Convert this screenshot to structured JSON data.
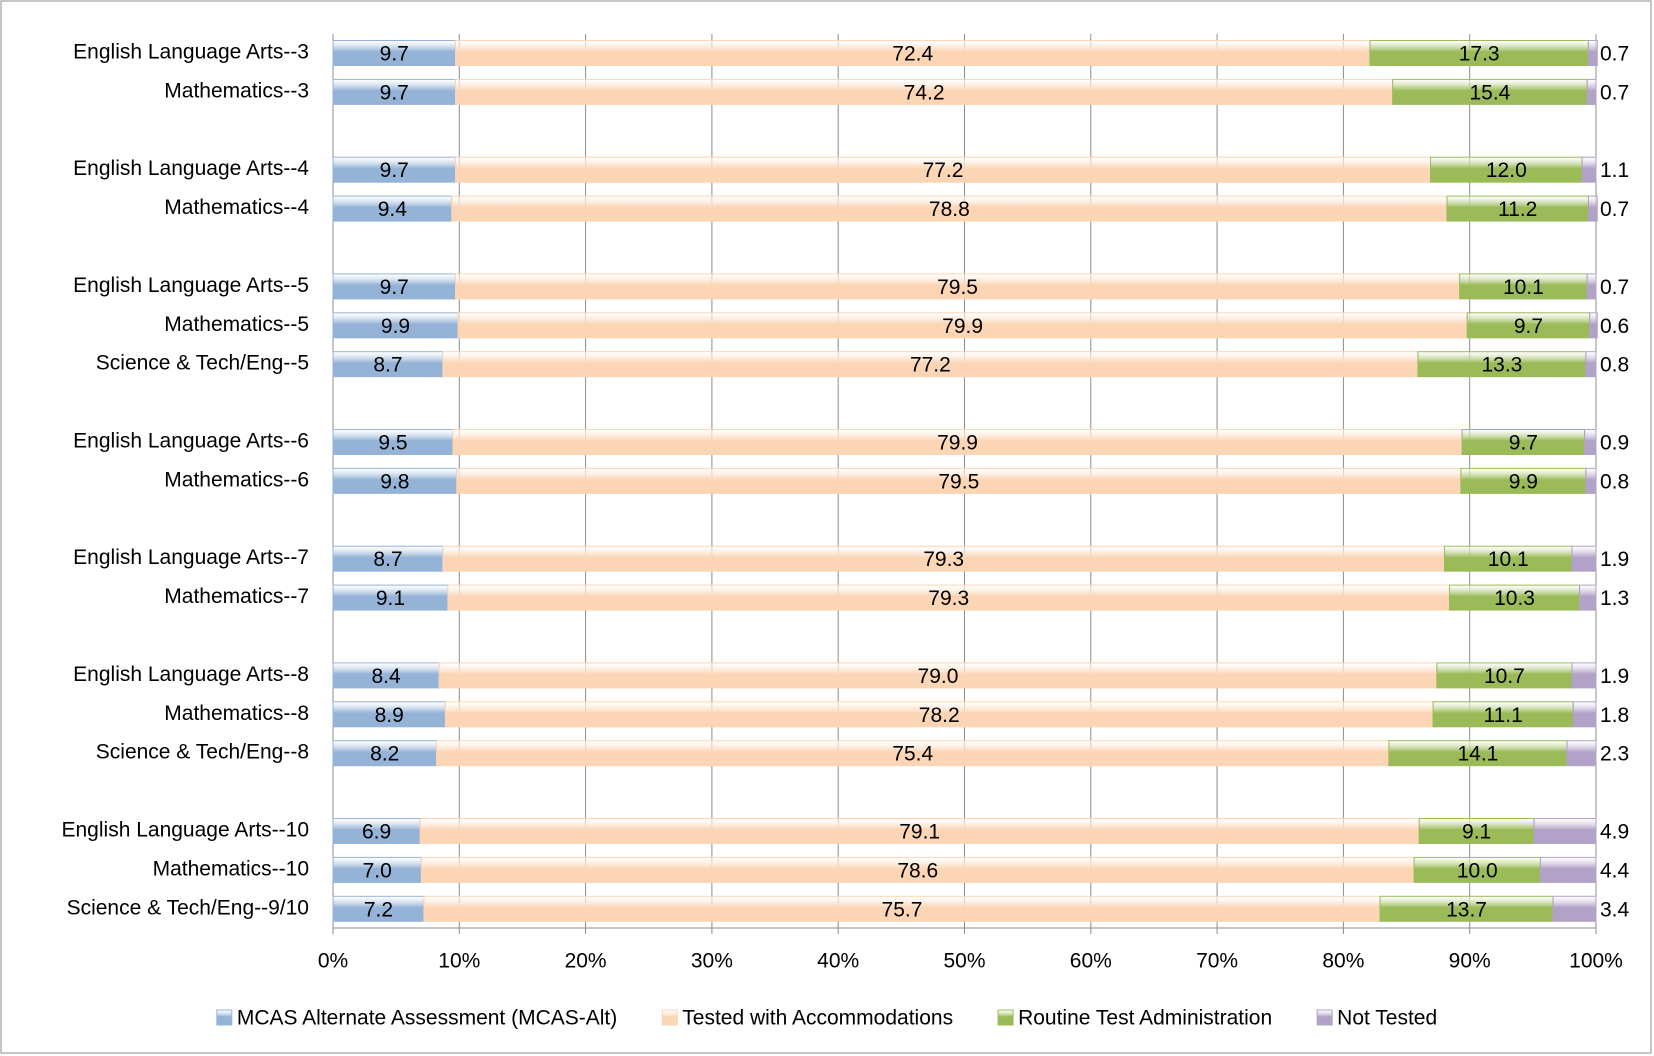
{
  "chart_data": {
    "type": "stacked-bar-horizontal",
    "categories": [
      "English Language Arts--3",
      "Mathematics--3",
      null,
      "English Language Arts--4",
      "Mathematics--4",
      null,
      "English Language Arts--5",
      "Mathematics--5",
      "Science & Tech/Eng--5",
      null,
      "English Language Arts--6",
      "Mathematics--6",
      null,
      "English Language Arts--7",
      "Mathematics--7",
      null,
      "English Language Arts--8",
      "Mathematics--8",
      "Science & Tech/Eng--8",
      null,
      "English Language Arts--10",
      "Mathematics--10",
      "Science & Tech/Eng--9/10"
    ],
    "series": [
      {
        "name": "MCAS Alternate Assessment (MCAS-Alt)",
        "color": "#95b3d7",
        "values": [
          9.7,
          9.7,
          null,
          9.7,
          9.4,
          null,
          9.7,
          9.9,
          8.7,
          null,
          9.5,
          9.8,
          null,
          8.7,
          9.1,
          null,
          8.4,
          8.9,
          8.2,
          null,
          6.9,
          7.0,
          7.2
        ],
        "value_labels": [
          "9.7",
          "9.7",
          null,
          "9.7",
          "9.4",
          null,
          "9.7",
          "9.9",
          "8.7",
          null,
          "9.5",
          "9.8",
          null,
          "8.7",
          "9.1",
          null,
          "8.4",
          "8.9",
          "8.2",
          null,
          "6.9",
          "7.0",
          "7.2"
        ]
      },
      {
        "name": "Tested with Accommodations",
        "color": "#fcd5b5",
        "values": [
          72.4,
          74.2,
          null,
          77.2,
          78.8,
          null,
          79.5,
          79.9,
          77.2,
          null,
          79.9,
          79.5,
          null,
          79.3,
          79.3,
          null,
          79.0,
          78.2,
          75.4,
          null,
          79.1,
          78.6,
          75.7
        ],
        "value_labels": [
          "72.4",
          "74.2",
          null,
          "77.2",
          "78.8",
          null,
          "79.5",
          "79.9",
          "77.2",
          null,
          "79.9",
          "79.5",
          null,
          "79.3",
          "79.3",
          null,
          "79.0",
          "78.2",
          "75.4",
          null,
          "79.1",
          "78.6",
          "75.7"
        ]
      },
      {
        "name": "Routine Test Administration",
        "color": "#9bbb59",
        "values": [
          17.3,
          15.4,
          null,
          12.0,
          11.2,
          null,
          10.1,
          9.7,
          13.3,
          null,
          9.7,
          9.9,
          null,
          10.1,
          10.3,
          null,
          10.7,
          11.1,
          14.1,
          null,
          9.1,
          10.0,
          13.7
        ],
        "value_labels": [
          "17.3",
          "15.4",
          null,
          "12.0",
          "11.2",
          null,
          "10.1",
          "9.7",
          "13.3",
          null,
          "9.7",
          "9.9",
          null,
          "10.1",
          "10.3",
          null,
          "10.7",
          "11.1",
          "14.1",
          null,
          "9.1",
          "10.0",
          "13.7"
        ]
      },
      {
        "name": "Not Tested",
        "color": "#b3a2c7",
        "values": [
          0.7,
          0.7,
          null,
          1.1,
          0.7,
          null,
          0.7,
          0.6,
          0.8,
          null,
          0.9,
          0.8,
          null,
          1.9,
          1.3,
          null,
          1.9,
          1.8,
          2.3,
          null,
          4.9,
          4.4,
          3.4
        ],
        "value_labels": [
          "0.7",
          "0.7",
          null,
          "1.1",
          "0.7",
          null,
          "0.7",
          "0.6",
          "0.8",
          null,
          "0.9",
          "0.8",
          null,
          "1.9",
          "1.3",
          null,
          "1.9",
          "1.8",
          "2.3",
          null,
          "4.9",
          "4.4",
          "3.4"
        ]
      }
    ],
    "xlim": [
      0,
      100
    ],
    "xticks": [
      {
        "value": 0,
        "label": "0%"
      },
      {
        "value": 10,
        "label": "10%"
      },
      {
        "value": 20,
        "label": "20%"
      },
      {
        "value": 30,
        "label": "30%"
      },
      {
        "value": 40,
        "label": "40%"
      },
      {
        "value": 50,
        "label": "50%"
      },
      {
        "value": 60,
        "label": "60%"
      },
      {
        "value": 70,
        "label": "70%"
      },
      {
        "value": 80,
        "label": "80%"
      },
      {
        "value": 90,
        "label": "90%"
      },
      {
        "value": 100,
        "label": "100%"
      }
    ],
    "grid": true,
    "legend": "bottom"
  }
}
